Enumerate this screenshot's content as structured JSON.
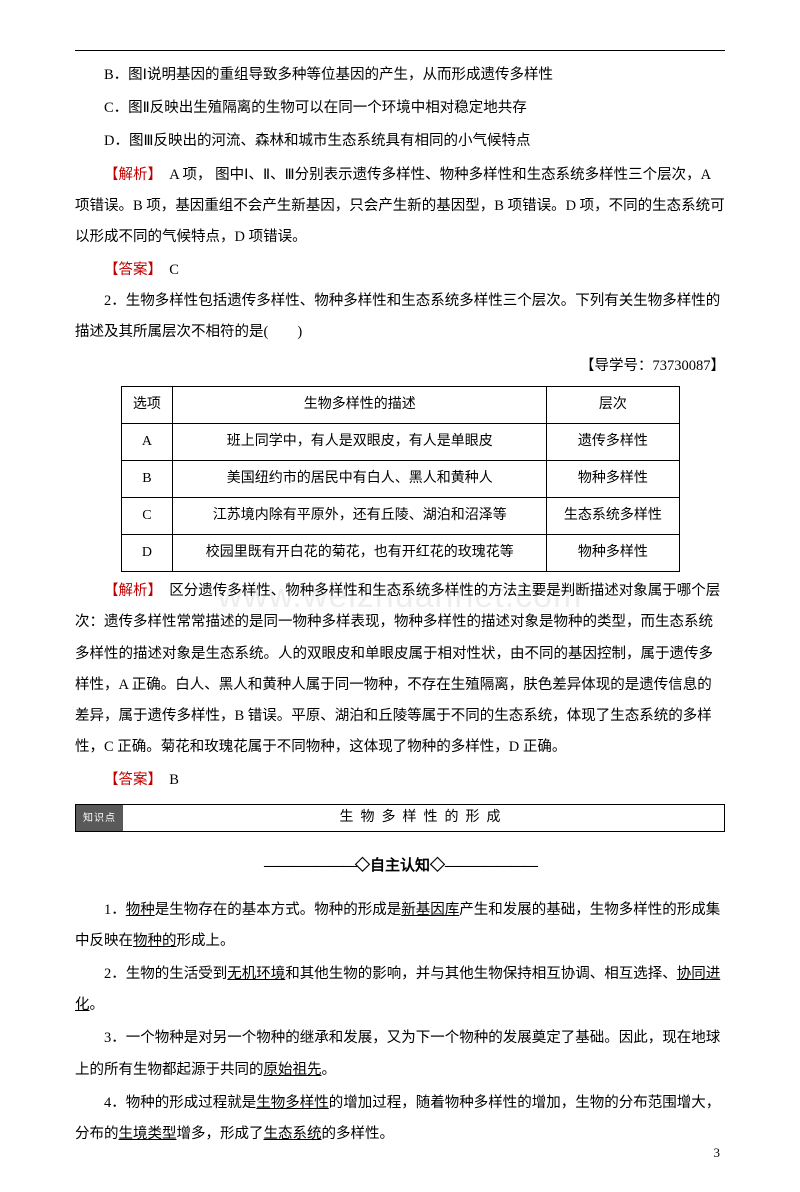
{
  "watermark": "www.weizhuannet.com",
  "top": {
    "optB": "B．图Ⅰ说明基因的重组导致多种等位基因的产生，从而形成遗传多样性",
    "optC": "C．图Ⅱ反映出生殖隔离的生物可以在同一个环境中相对稳定地共存",
    "optD": "D．图Ⅲ反映出的河流、森林和城市生态系统具有相同的小气候特点",
    "analysis_label": "【解析】",
    "analysis_body": "　A 项，  图中Ⅰ、Ⅱ、Ⅲ分别表示遗传多样性、物种多样性和生态系统多样性三个层次，A 项错误。B 项，基因重组不会产生新基因，只会产生新的基因型，B 项错误。D 项，不同的生态系统可以形成不同的气候特点，D 项错误。",
    "answer_label": "【答案】",
    "answer_val": "　C"
  },
  "q2": {
    "stem": "2．生物多样性包括遗传多样性、物种多样性和生态系统多样性三个层次。下列有关生物多样性的描述及其所属层次不相符的是(　　)",
    "ref": "【导学号：73730087】",
    "table": {
      "headers": [
        "选项",
        "生物多样性的描述",
        "层次"
      ],
      "rows": [
        [
          "A",
          "班上同学中，有人是双眼皮，有人是单眼皮",
          "遗传多样性"
        ],
        [
          "B",
          "美国纽约市的居民中有白人、黑人和黄种人",
          "物种多样性"
        ],
        [
          "C",
          "江苏境内除有平原外，还有丘陵、湖泊和沼泽等",
          "生态系统多样性"
        ],
        [
          "D",
          "校园里既有开白花的菊花，也有开红花的玫瑰花等",
          "物种多样性"
        ]
      ]
    },
    "analysis_label": "【解析】",
    "analysis_body": "　区分遗传多样性、物种多样性和生态系统多样性的方法主要是判断描述对象属于哪个层次：遗传多样性常常描述的是同一物种多样表现，物种多样性的描述对象是物种的类型，而生态系统多样性的描述对象是生态系统。人的双眼皮和单眼皮属于相对性状，由不同的基因控制，属于遗传多样性，A 正确。白人、黑人和黄种人属于同一物种，不存在生殖隔离，肤色差异体现的是遗传信息的差异，属于遗传多样性，B 错误。平原、湖泊和丘陵等属于不同的生态系统，体现了生态系统的多样性，C 正确。菊花和玫瑰花属于不同物种，这体现了物种的多样性，D 正确。",
    "answer_label": "【答案】",
    "answer_val": "　B"
  },
  "section": {
    "tab": "知识点",
    "title": "生物多样性的形成"
  },
  "self": {
    "heading_line": "———————",
    "heading": "◇自主认知◇",
    "p1_a": "1．",
    "p1_u1": "物种",
    "p1_b": "是生物存在的基本方式。物种的形成是",
    "p1_u2": "新基因库",
    "p1_c": "产生和发展的基础，生物多样性的形成集中反映在",
    "p1_u3": "物种的",
    "p1_d": "形成上。",
    "p2_a": "2．生物的生活受到",
    "p2_u1": "无机环境",
    "p2_b": "和其他生物的影响，并与其他生物保持相互协调、相互选择、",
    "p2_u2": "协同进化",
    "p2_c": "。",
    "p3_a": "3．一个物种是对另一个物种的继承和发展，又为下一个物种的发展奠定了基础。因此，现在地球上的所有生物都起源于共同的",
    "p3_u1": "原始祖先",
    "p3_b": "。",
    "p4_a": "4．物种的形成过程就是",
    "p4_u1": "生物多样性",
    "p4_b": "的增加过程，随着物种多样性的增加，生物的分布范围增大，分布的",
    "p4_u2": "生境类型",
    "p4_c": "增多，形成了",
    "p4_u3": "生态系统",
    "p4_d": "的多样性。"
  },
  "page": "3"
}
